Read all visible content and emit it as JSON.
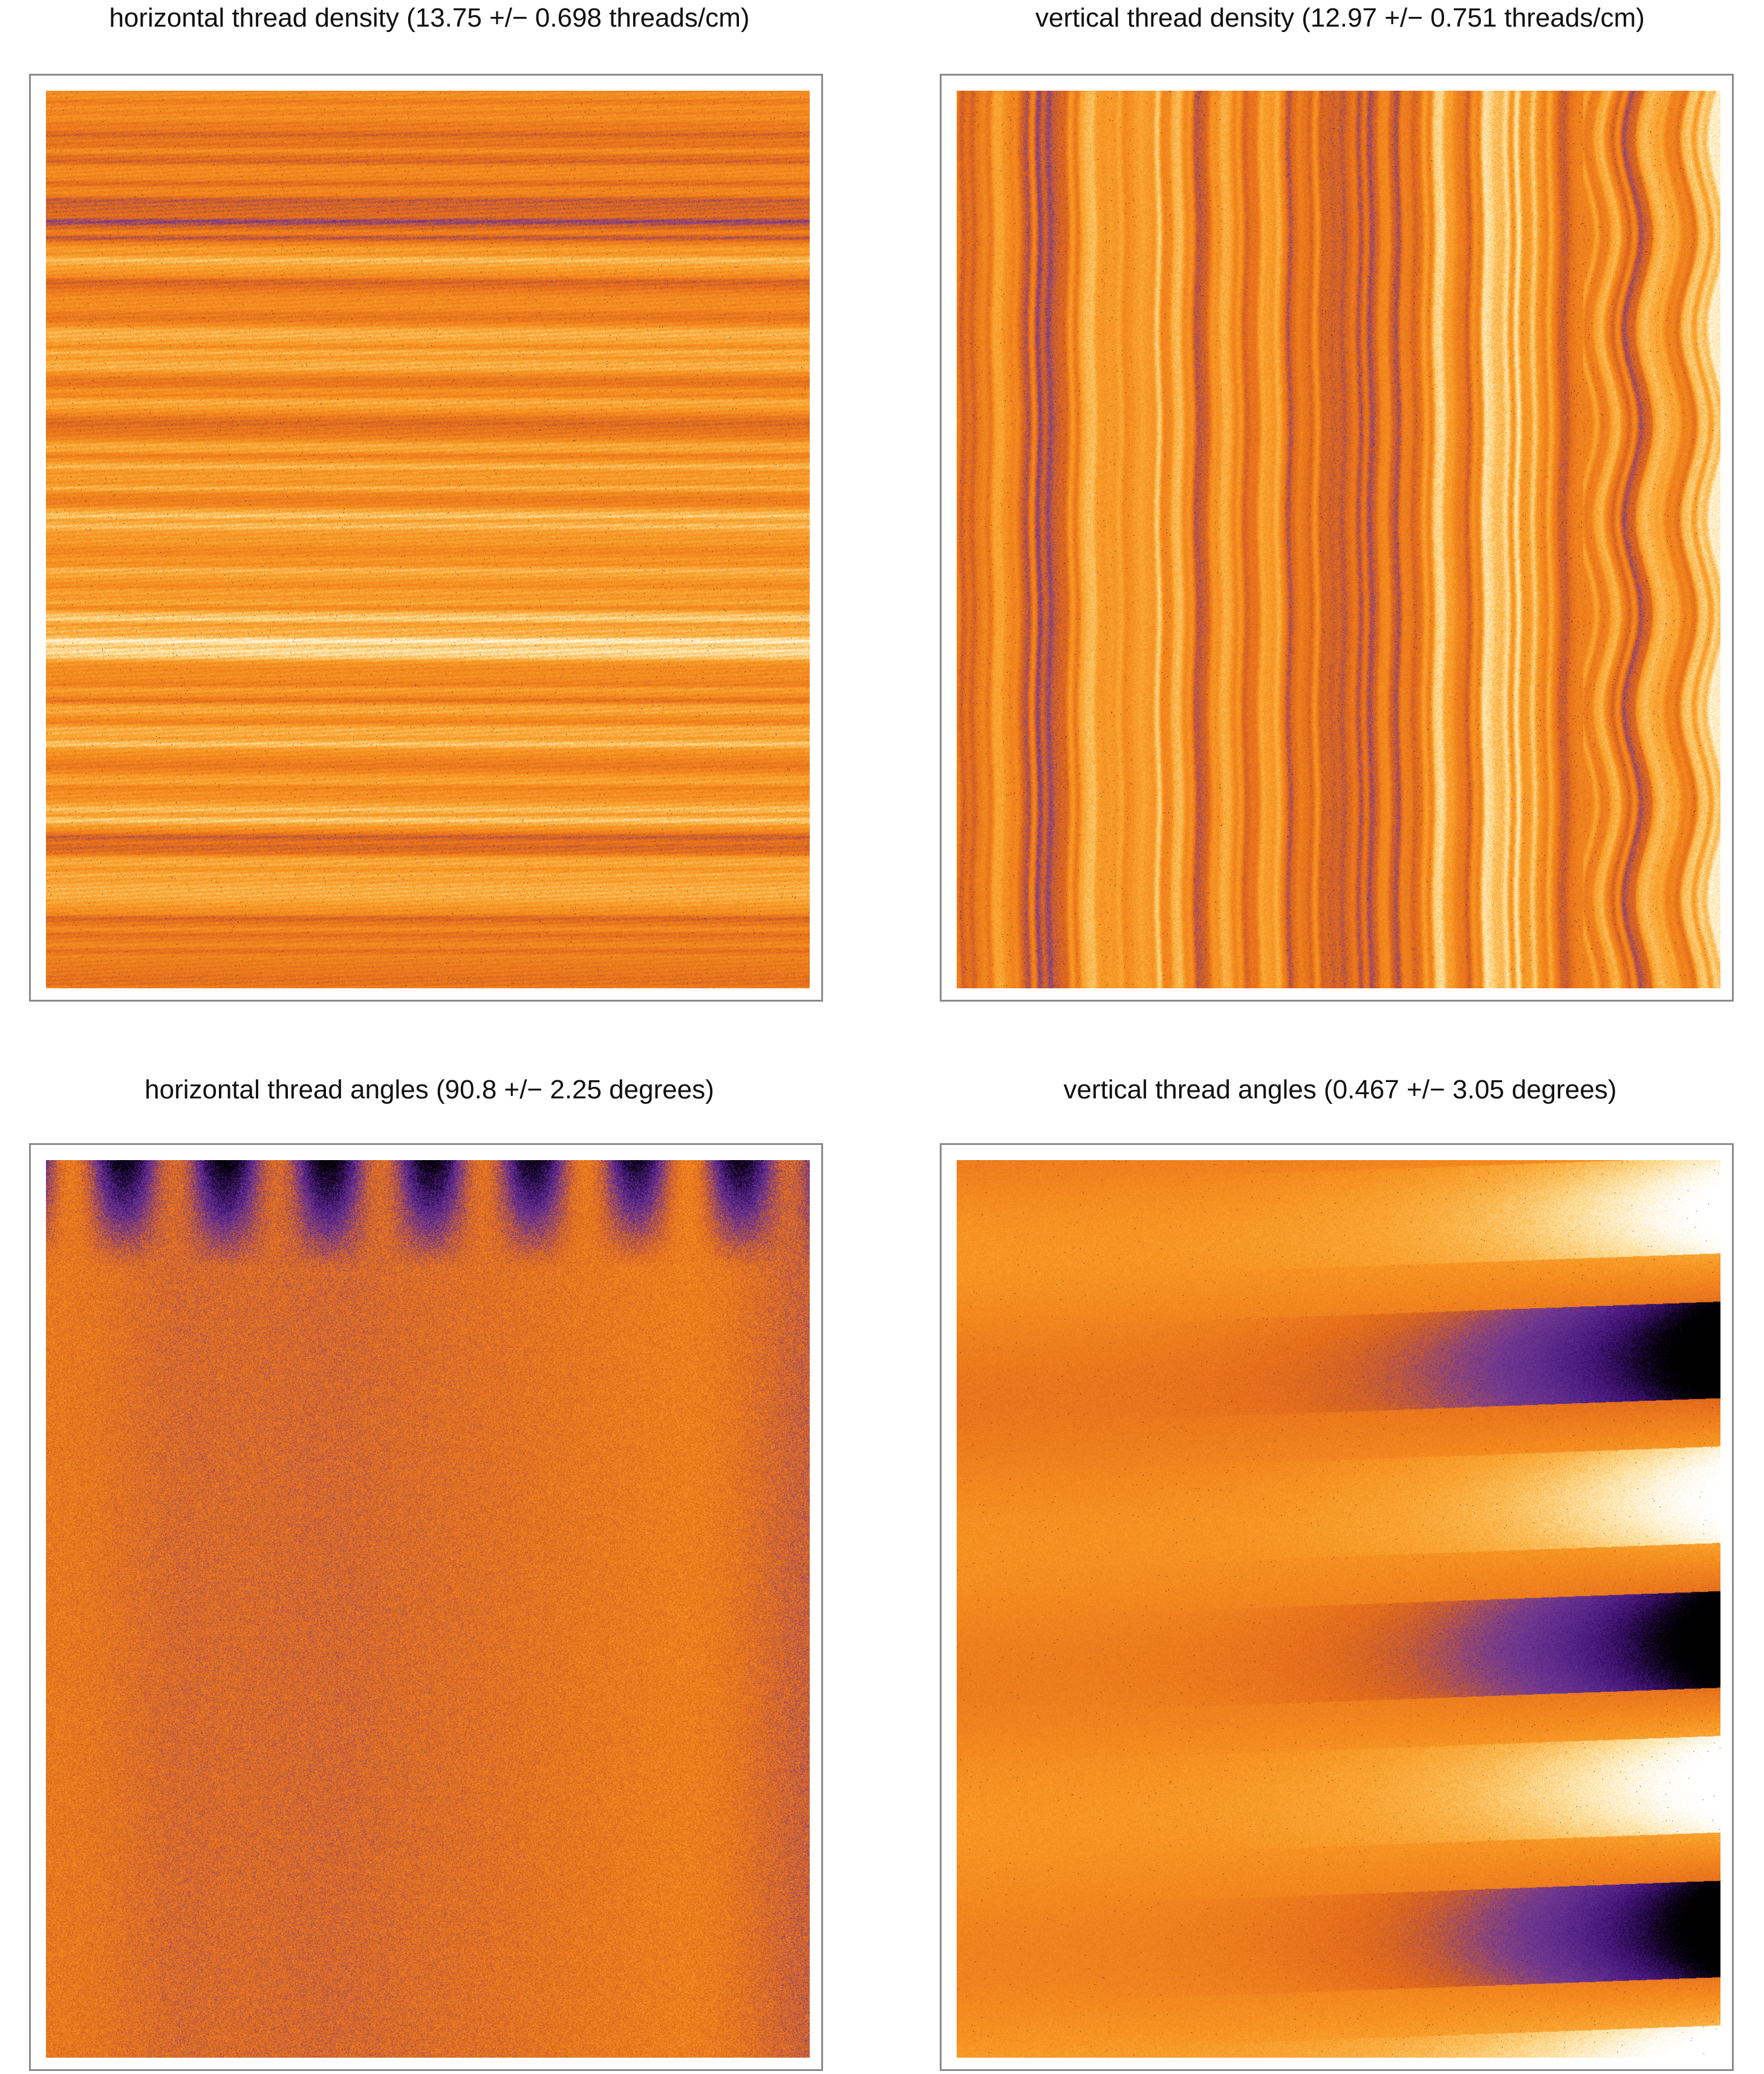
{
  "figure": {
    "panels": [
      {
        "id": "horizontal-density",
        "title": "horizontal thread density (13.75 +/− 0.698 threads/cm)",
        "texture": "horizontal-streaks"
      },
      {
        "id": "vertical-density",
        "title": "vertical thread density (12.97 +/− 0.751 threads/cm)",
        "texture": "vertical-streaks"
      },
      {
        "id": "horizontal-angles",
        "title": "horizontal thread angles (90.8 +/− 2.25 degrees)",
        "texture": "vertical-blobs"
      },
      {
        "id": "vertical-angles",
        "title": "vertical thread angles (0.467 +/− 3.05 degrees)",
        "texture": "horizontal-bands"
      }
    ],
    "colormap": [
      "#000000",
      "#3b0f70",
      "#5c2a8c",
      "#7a3e8f",
      "#d9621c",
      "#ee7a1e",
      "#f6921f",
      "#fbb040",
      "#fde2a0",
      "#ffffff"
    ]
  }
}
